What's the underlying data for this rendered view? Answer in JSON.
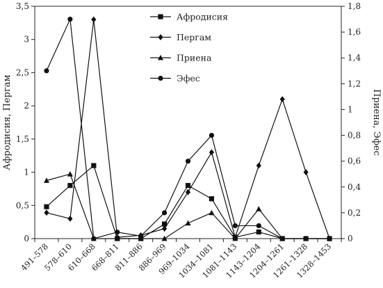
{
  "chart_data": {
    "type": "line",
    "categories": [
      "491–578",
      "578–610",
      "610–668",
      "668–811",
      "811–886",
      "886–969",
      "969–1034",
      "1034–1081",
      "1081–1143",
      "1143–1204",
      "1204–1261",
      "1261–1328",
      "1328–1453"
    ],
    "x_positions": [
      0.5,
      1.5,
      2.5,
      3.5,
      4.5,
      5.5,
      6.5,
      7.5,
      8.5,
      9.5,
      10.5,
      11.5,
      12.5
    ],
    "ylabel_left": "Афродисия, Пергам",
    "ylabel_right": "Приена, Эфес",
    "ylim_left": [
      0,
      3.5
    ],
    "ylim_right": [
      0,
      1.8
    ],
    "yticks_left": [
      "0",
      "0,5",
      "1",
      "1,5",
      "2",
      "2,5",
      "3",
      "3,5"
    ],
    "yticks_right": [
      "0",
      "0,2",
      "0,4",
      "0,6",
      "0,8",
      "1",
      "1,2",
      "1,4",
      "1,6",
      "1,8"
    ],
    "grid": false,
    "legend_position": "top-center",
    "series": [
      {
        "name": "Афродисия",
        "axis": "left",
        "marker": "square",
        "x": [
          0,
          1,
          2,
          3,
          4,
          5,
          6,
          7,
          8,
          9,
          10,
          11,
          12
        ],
        "values": [
          0.48,
          0.8,
          1.1,
          0.0,
          0.0,
          0.22,
          0.8,
          0.6,
          0.02,
          0.1,
          0.0,
          0.0,
          0.0
        ]
      },
      {
        "name": "Пергам",
        "axis": "left",
        "marker": "diamond",
        "x": [
          0,
          1,
          2,
          3,
          4,
          5,
          6,
          7,
          8,
          9,
          10,
          11,
          12
        ],
        "values": [
          0.39,
          0.3,
          3.3,
          0.02,
          0.05,
          0.15,
          0.7,
          1.3,
          0.02,
          1.1,
          2.1,
          1.0,
          0.0
        ]
      },
      {
        "name": "Приена",
        "axis": "right",
        "marker": "triangle",
        "x": [
          0,
          1,
          2,
          3,
          4,
          5,
          6,
          7,
          8,
          9,
          10,
          11,
          12
        ],
        "values": [
          0.45,
          0.5,
          0.0,
          0.0,
          0.0,
          0.0,
          0.12,
          0.2,
          0.0,
          0.23,
          0.0,
          0.0,
          0.0
        ]
      },
      {
        "name": "Эфес",
        "axis": "right",
        "marker": "circle",
        "x": [
          0,
          1,
          2,
          3,
          4,
          5,
          6,
          7,
          8,
          9,
          10,
          11,
          12
        ],
        "values": [
          1.3,
          1.7,
          0.0,
          0.05,
          0.02,
          0.2,
          0.6,
          0.8,
          0.1,
          0.1,
          0.0,
          0.0,
          0.0
        ]
      }
    ]
  }
}
